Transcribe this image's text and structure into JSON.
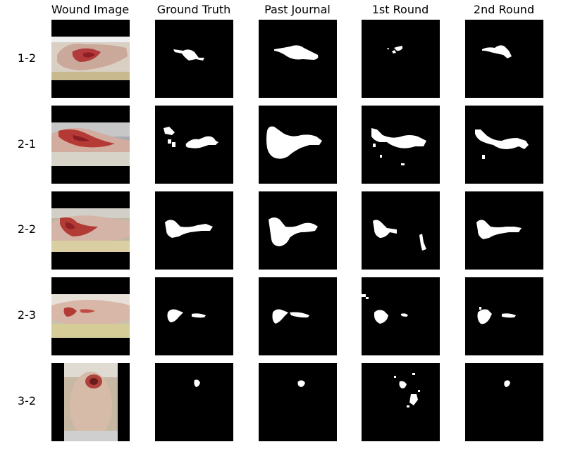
{
  "columns": [
    "Wound Image",
    "Ground Truth",
    "Past Journal",
    "1st Round",
    "2nd Round"
  ],
  "rows": [
    {
      "label": "1-2"
    },
    {
      "label": "2-1"
    },
    {
      "label": "2-2"
    },
    {
      "label": "2-3"
    },
    {
      "label": "3-2"
    }
  ]
}
